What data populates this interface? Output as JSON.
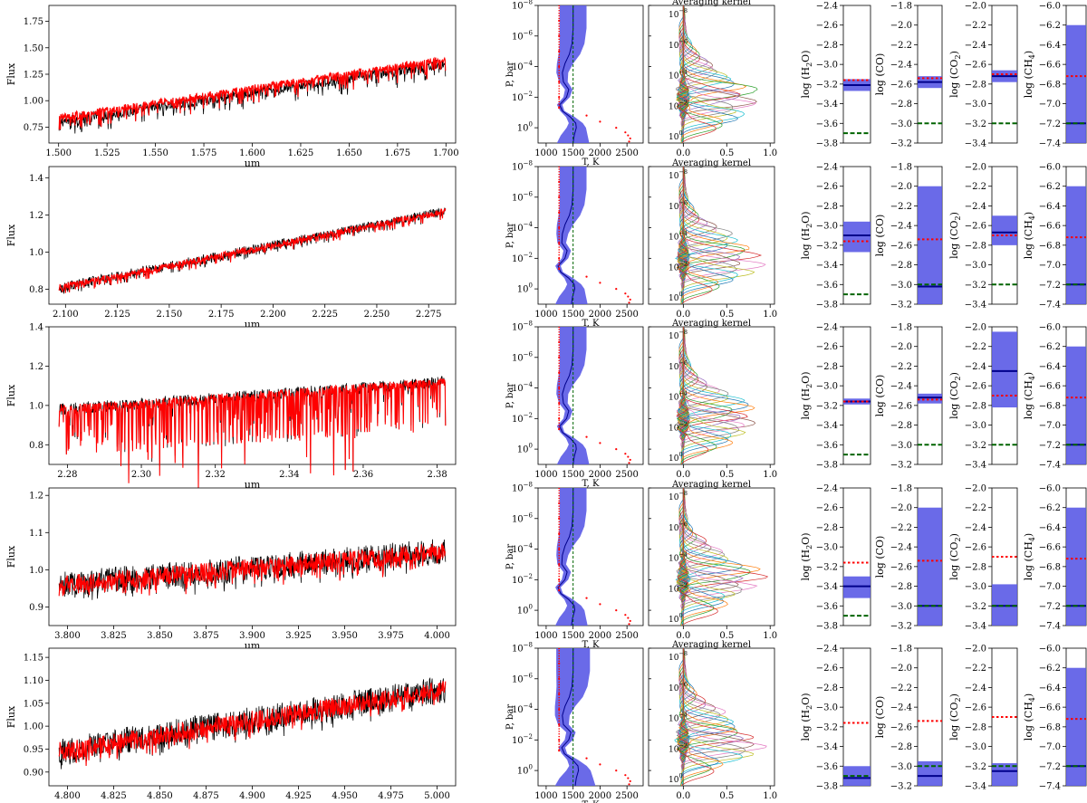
{
  "chart_data": {
    "type": "multi-panel",
    "layout": "5 rows (spectral bands) x 7 columns (spectrum, T-P profile, averaging kernel, log H2O, log CO, log CO2, log CH4)",
    "colors": {
      "observed": "#000000",
      "model": "#ff0000",
      "band": "#5a5ae6",
      "retrieved": "#00008b",
      "truth": "#ff0000",
      "prior": "#006400",
      "kernel": [
        "#1f77b4",
        "#ff7f0e",
        "#2ca02c",
        "#d62728",
        "#9467bd",
        "#8c564b",
        "#e377c2",
        "#7f7f7f",
        "#bcbd22",
        "#17becf"
      ]
    },
    "spectra": [
      {
        "xlabel": "μm",
        "ylabel": "Flux",
        "xlim": [
          1.495,
          1.705
        ],
        "ylim": [
          0.6,
          1.9
        ],
        "xticks": [
          1.5,
          1.525,
          1.55,
          1.575,
          1.6,
          1.625,
          1.65,
          1.675,
          1.7
        ],
        "xtick_labels": [
          "1.500",
          "1.525",
          "1.550",
          "1.575",
          "1.600",
          "1.625",
          "1.650",
          "1.675",
          "1.700"
        ],
        "yticks": [
          0.75,
          1.0,
          1.25,
          1.5,
          1.75
        ],
        "ytick_labels": [
          "0.75",
          "1.00",
          "1.25",
          "1.50",
          "1.75"
        ],
        "base_start": 0.8,
        "base_end": 1.35,
        "noise": 0.05,
        "line_depth": 0.12,
        "red_offset": 0.04
      },
      {
        "xlabel": "μm",
        "ylabel": "Flux",
        "xlim": [
          2.092,
          2.288
        ],
        "ylim": [
          0.72,
          1.46
        ],
        "xticks": [
          2.1,
          2.125,
          2.15,
          2.175,
          2.2,
          2.225,
          2.25,
          2.275
        ],
        "xtick_labels": [
          "2.100",
          "2.125",
          "2.150",
          "2.175",
          "2.200",
          "2.225",
          "2.250",
          "2.275"
        ],
        "yticks": [
          0.8,
          1.0,
          1.2,
          1.4
        ],
        "ytick_labels": [
          "0.8",
          "1.0",
          "1.2",
          "1.4"
        ],
        "base_start": 0.81,
        "base_end": 1.22,
        "noise": 0.025,
        "line_depth": 0.03,
        "red_offset": 0.0
      },
      {
        "xlabel": "μm",
        "ylabel": "Flux",
        "xlim": [
          2.275,
          2.385
        ],
        "ylim": [
          0.7,
          1.4
        ],
        "xticks": [
          2.28,
          2.3,
          2.32,
          2.34,
          2.36,
          2.38
        ],
        "xtick_labels": [
          "2.28",
          "2.30",
          "2.32",
          "2.34",
          "2.36",
          "2.38"
        ],
        "yticks": [
          0.8,
          1.0,
          1.2,
          1.4
        ],
        "ytick_labels": [
          "0.8",
          "1.0",
          "1.2",
          "1.4"
        ],
        "base_start": 0.98,
        "base_end": 1.12,
        "noise": 0.03,
        "line_depth": 0.22,
        "red_offset": 0.0
      },
      {
        "xlabel": "μm",
        "ylabel": "Flux",
        "xlim": [
          3.79,
          4.01
        ],
        "ylim": [
          0.85,
          1.22
        ],
        "xticks": [
          3.8,
          3.825,
          3.85,
          3.875,
          3.9,
          3.925,
          3.95,
          3.975,
          4.0
        ],
        "xtick_labels": [
          "3.800",
          "3.825",
          "3.850",
          "3.875",
          "3.900",
          "3.925",
          "3.950",
          "3.975",
          "4.000"
        ],
        "yticks": [
          0.9,
          1.0,
          1.1,
          1.2
        ],
        "ytick_labels": [
          "0.9",
          "1.0",
          "1.1",
          "1.2"
        ],
        "base_start": 0.96,
        "base_end": 1.05,
        "noise": 0.035,
        "line_depth": 0.03,
        "red_offset": 0.0
      },
      {
        "xlabel": "μm",
        "ylabel": "Flux",
        "xlim": [
          4.79,
          5.01
        ],
        "ylim": [
          0.87,
          1.17
        ],
        "xticks": [
          4.8,
          4.825,
          4.85,
          4.875,
          4.9,
          4.925,
          4.95,
          4.975,
          5.0
        ],
        "xtick_labels": [
          "4.800",
          "4.825",
          "4.850",
          "4.875",
          "4.900",
          "4.925",
          "4.950",
          "4.975",
          "5.000"
        ],
        "yticks": [
          0.9,
          0.95,
          1.0,
          1.05,
          1.1,
          1.15
        ],
        "ytick_labels": [
          "0.90",
          "0.95",
          "1.00",
          "1.05",
          "1.10",
          "1.15"
        ],
        "base_start": 0.945,
        "base_end": 1.08,
        "noise": 0.03,
        "line_depth": 0.02,
        "red_offset": 0.0
      }
    ],
    "tp_profile": {
      "xlabel": "T, K",
      "ylabel": "P, bar",
      "xlim": [
        850,
        2800
      ],
      "xticks": [
        1000,
        1500,
        2000,
        2500
      ],
      "xtick_labels": [
        "1000",
        "1500",
        "2000",
        "2500"
      ],
      "log_p_range": [
        -8,
        1
      ],
      "yticks_exp": [
        -8,
        -6,
        -4,
        -2,
        0
      ],
      "ytick_base": "10",
      "ytick_exponents": [
        "−8",
        "−6",
        "−4",
        "−2",
        "0"
      ],
      "prior_T": 1500,
      "truth_points": [
        [
          1240,
          -8
        ],
        [
          1240,
          -7
        ],
        [
          1240,
          -6
        ],
        [
          1240,
          -5
        ],
        [
          1240,
          -4
        ],
        [
          1240,
          -3
        ],
        [
          1240,
          -2
        ],
        [
          1240,
          -1.3
        ],
        [
          1750,
          -0.8
        ],
        [
          2000,
          -0.4
        ],
        [
          2300,
          0
        ],
        [
          2470,
          0.3
        ],
        [
          2520,
          0.5
        ],
        [
          2560,
          0.7
        ],
        [
          2540,
          0.9
        ]
      ],
      "mean_profile": [
        [
          1500,
          -8
        ],
        [
          1500,
          -6.5
        ],
        [
          1480,
          -5.5
        ],
        [
          1430,
          -4.8
        ],
        [
          1350,
          -4.2
        ],
        [
          1300,
          -3.6
        ],
        [
          1320,
          -3.0
        ],
        [
          1420,
          -2.5
        ],
        [
          1380,
          -2.0
        ],
        [
          1250,
          -1.5
        ],
        [
          1300,
          -1.1
        ],
        [
          1450,
          -0.7
        ],
        [
          1550,
          -0.3
        ],
        [
          1560,
          0
        ],
        [
          1520,
          0.5
        ],
        [
          1500,
          1
        ]
      ],
      "band_halfwidth": [
        250,
        250,
        230,
        200,
        150,
        110,
        80,
        70,
        60,
        50,
        40,
        80,
        130,
        180,
        250,
        300
      ]
    },
    "kernel": {
      "title": "Averaging kernel",
      "xlim": [
        -0.4,
        1.05
      ],
      "xticks": [
        0.0,
        0.5,
        1.0
      ],
      "xtick_labels": [
        "0.0",
        "0.5",
        "1.0"
      ],
      "yticks_exp": [
        -8,
        -6,
        -4,
        -2,
        0
      ],
      "ytick_base": "10",
      "ytick_exponents": [
        "−8",
        "−6",
        "−4",
        "−2",
        "0"
      ],
      "peak_logp": -2.0
    },
    "abundances": [
      {
        "species": "H2O",
        "label_prefix": "log (H",
        "label_sub": "2",
        "label_suffix": "O)",
        "ylim": [
          -3.8,
          -2.4
        ],
        "yticks": [
          -3.8,
          -3.6,
          -3.4,
          -3.2,
          -3.0,
          -2.8,
          -2.6,
          -2.4
        ],
        "ytick_labels": [
          "−3.8",
          "−3.6",
          "−3.4",
          "−3.2",
          "−3.0",
          "−2.8",
          "−2.6",
          "−2.4"
        ],
        "truth": -3.16,
        "prior": -3.7,
        "retrieved": [
          -3.21,
          -3.1,
          -3.16,
          -3.4,
          -3.72
        ],
        "lower": [
          -3.27,
          -3.27,
          -3.19,
          -3.52,
          -3.8
        ],
        "upper": [
          -3.15,
          -2.96,
          -3.13,
          -3.3,
          -3.6
        ]
      },
      {
        "species": "CO",
        "label_prefix": "log (CO)",
        "label_sub": "",
        "label_suffix": "",
        "ylim": [
          -3.2,
          -1.8
        ],
        "yticks": [
          -3.2,
          -3.0,
          -2.8,
          -2.6,
          -2.4,
          -2.2,
          -2.0,
          -1.8
        ],
        "ytick_labels": [
          "−3.2",
          "−3.0",
          "−2.8",
          "−2.6",
          "−2.4",
          "−2.2",
          "−2.0",
          "−1.8"
        ],
        "truth": -2.54,
        "prior": -3.0,
        "retrieved": [
          -2.58,
          -3.02,
          -2.52,
          -3.0,
          -3.1
        ],
        "lower": [
          -2.64,
          -3.2,
          -2.58,
          -3.2,
          -3.2
        ],
        "upper": [
          -2.52,
          -2.0,
          -2.48,
          -2.0,
          -2.95
        ]
      },
      {
        "species": "CO2",
        "label_prefix": "log (CO",
        "label_sub": "2",
        "label_suffix": ")",
        "ylim": [
          -3.4,
          -2.0
        ],
        "yticks": [
          -3.4,
          -3.2,
          -3.0,
          -2.8,
          -2.6,
          -2.4,
          -2.2,
          -2.0
        ],
        "ytick_labels": [
          "−3.4",
          "−3.2",
          "−3.0",
          "−2.8",
          "−2.6",
          "−2.4",
          "−2.2",
          "−2.0"
        ],
        "truth": -2.7,
        "prior": -3.2,
        "retrieved": [
          -2.72,
          -2.67,
          -2.45,
          -3.2,
          -3.25
        ],
        "lower": [
          -2.78,
          -2.8,
          -2.82,
          -3.4,
          -3.4
        ],
        "upper": [
          -2.66,
          -2.5,
          -2.05,
          -2.98,
          -3.17
        ]
      },
      {
        "species": "CH4",
        "label_prefix": "log (CH",
        "label_sub": "4",
        "label_suffix": ")",
        "ylim": [
          -7.4,
          -6.0
        ],
        "yticks": [
          -7.4,
          -7.2,
          -7.0,
          -6.8,
          -6.6,
          -6.4,
          -6.2,
          -6.0
        ],
        "ytick_labels": [
          "−7.4",
          "−7.2",
          "−7.0",
          "−6.8",
          "−6.6",
          "−6.4",
          "−6.2",
          "−6.0"
        ],
        "truth": -6.72,
        "prior": -7.2,
        "retrieved": [
          -7.2,
          -7.2,
          -7.2,
          -7.2,
          -7.2
        ],
        "lower": [
          -7.4,
          -7.4,
          -7.4,
          -7.4,
          -7.4
        ],
        "upper": [
          -6.2,
          -6.2,
          -6.2,
          -6.2,
          -6.2
        ]
      }
    ]
  }
}
